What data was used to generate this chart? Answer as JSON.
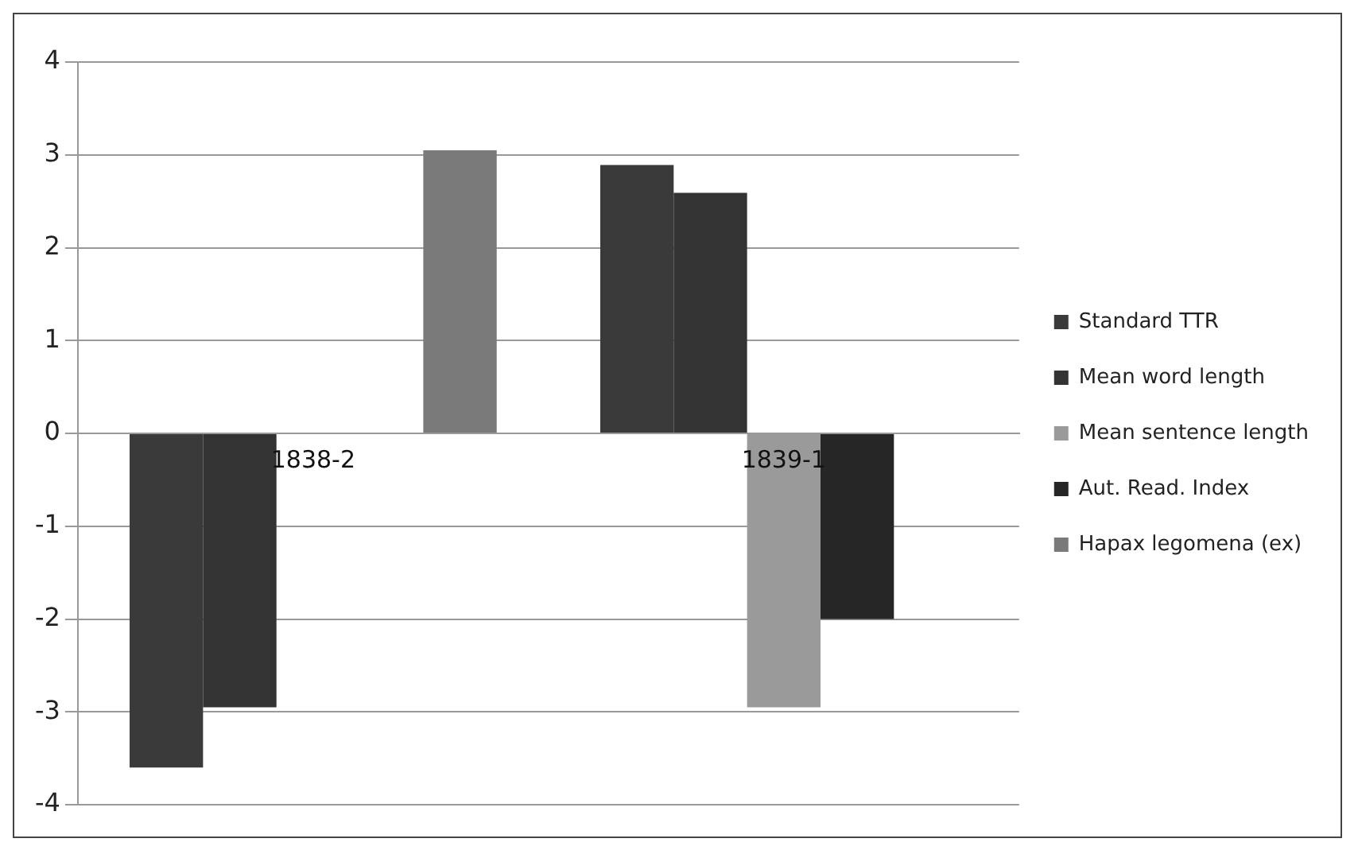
{
  "chart_data": {
    "type": "bar",
    "categories": [
      "1838-2",
      "1839-1"
    ],
    "series": [
      {
        "name": "Standard TTR",
        "color": "#3a3a3a",
        "values": [
          -3.6,
          2.89
        ]
      },
      {
        "name": "Mean word length",
        "color": "#333333",
        "values": [
          -2.95,
          2.59
        ]
      },
      {
        "name": "Mean sentence length",
        "color": "#9a9a9a",
        "values": [
          null,
          -2.95
        ]
      },
      {
        "name": "Aut. Read. Index",
        "color": "#262626",
        "values": [
          null,
          -2.0
        ]
      },
      {
        "name": "Hapax legomena (ex)",
        "color": "#7a7a7a",
        "values": [
          3.05,
          null
        ]
      }
    ],
    "ylim": [
      -4,
      4
    ],
    "yticks": [
      -4,
      -3,
      -2,
      -1,
      0,
      1,
      2,
      3,
      4
    ],
    "grid": "y",
    "legend": "right"
  }
}
